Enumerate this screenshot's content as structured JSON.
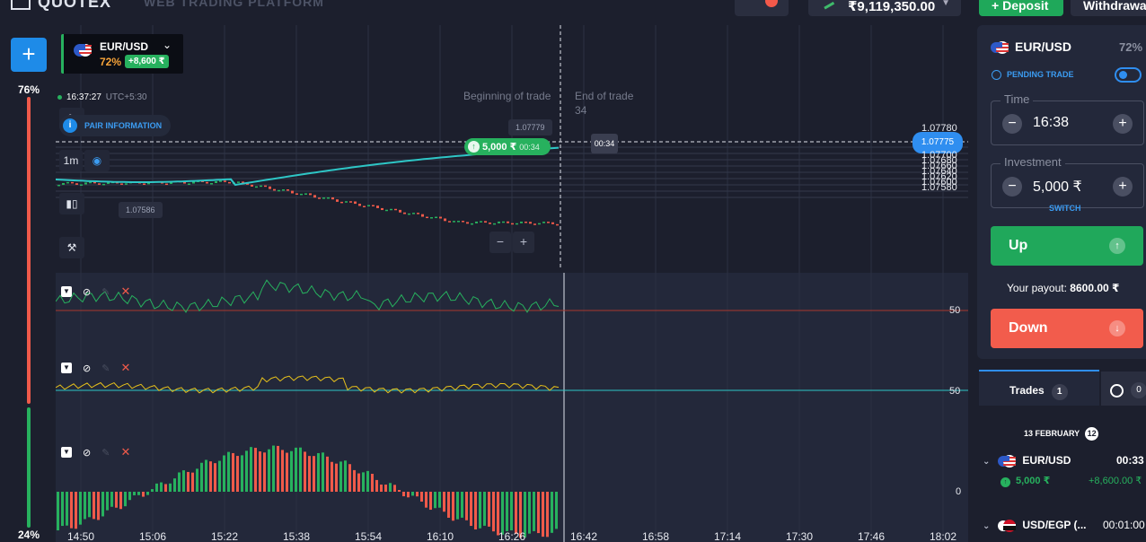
{
  "header": {
    "logo": "QUOTEX",
    "subtitle": "WEB TRADING PLATFORM",
    "balance": "₹9,119,350.00",
    "deposit_label": "Deposit",
    "withdraw_label": "Withdrawal"
  },
  "left": {
    "add_label": "+",
    "sentiment_up": "76%",
    "sentiment_down": "24%"
  },
  "asset_card": {
    "name": "EUR/USD",
    "payout_pct": "72%",
    "profit": "+8,600 ₹"
  },
  "chart": {
    "clock": "16:37:27",
    "timezone": "UTC+5:30",
    "pair_information": "PAIR INFORMATION",
    "beginning_label": "Beginning of trade",
    "end_label": "End of trade",
    "end_countdown": "34",
    "high_price": "1.07779",
    "low_price": "1.07586",
    "trade_amount": "5,000 ₹",
    "trade_timer": "00:34",
    "timer_box": "00:34",
    "price_top": "1.07780",
    "current_price": "1.07775",
    "price_levels": [
      "1.07700",
      "1.07680",
      "1.07660",
      "1.07640",
      "1.07620",
      "1.07600",
      "1.07580"
    ],
    "zoom_out": "−",
    "zoom_in": "+",
    "indicator_levels": [
      "50",
      "50",
      "0"
    ],
    "time_labels": [
      "14:50",
      "15:06",
      "15:22",
      "15:38",
      "15:54",
      "16:10",
      "16:26",
      "16:42",
      "16:58",
      "17:14",
      "17:30",
      "17:46",
      "18:02"
    ]
  },
  "panel": {
    "pair": "EUR/USD",
    "pct": "72%",
    "pending": "PENDING TRADE",
    "time_legend": "Time",
    "time_value": "16:38",
    "investment_legend": "Investment",
    "investment_value": "5,000 ₹",
    "switch": "SWITCH",
    "up_label": "Up",
    "down_label": "Down",
    "payout_label": "Your payout:",
    "payout_value": "8600.00 ₹"
  },
  "trades": {
    "tab_label": "Trades",
    "tab_count": "1",
    "history_count": "0",
    "date": "13 FEBRUARY",
    "date_count": "12",
    "rows": [
      {
        "pair": "EUR/USD",
        "time": "00:33",
        "amount": "5,000 ₹",
        "profit": "+8,600.00 ₹"
      },
      {
        "pair": "USD/EGP (...",
        "time": "00:01:00"
      }
    ]
  },
  "colors": {
    "background": "#1c1f2d",
    "up": "#27b15e",
    "down": "#f05a4a",
    "accent": "#2f8ef0",
    "line": "#2ec6c6"
  }
}
